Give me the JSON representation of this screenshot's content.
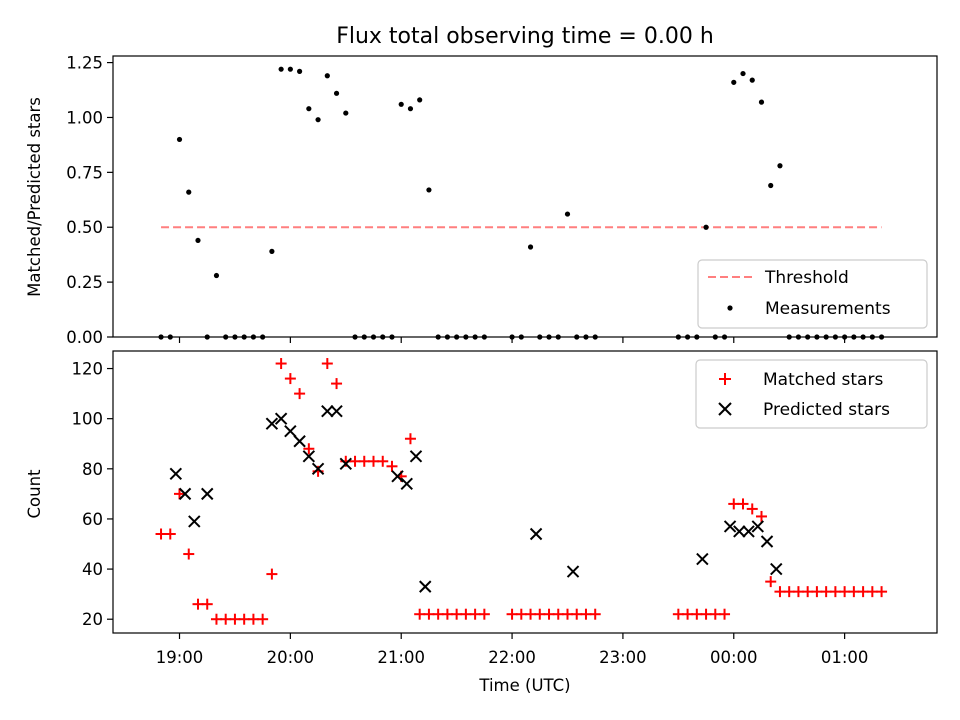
{
  "figure": {
    "title": "Flux total observing time = 0.00 h",
    "xlabel": "Time (UTC)"
  },
  "colors": {
    "threshold": "#ff7f7f",
    "measurements": "#000000",
    "matched": "#ff0000",
    "predicted": "#000000"
  },
  "chart_data": [
    {
      "type": "scatter",
      "panel": "top",
      "ylabel": "Matched/Predicted stars",
      "ylim": [
        0,
        1.28
      ],
      "xlim": [
        "18:24",
        "01:50"
      ],
      "x_ticks": [
        "19:00",
        "20:00",
        "21:00",
        "22:00",
        "23:00",
        "00:00",
        "01:00"
      ],
      "y_ticks": [
        "0.00",
        "0.25",
        "0.50",
        "0.75",
        "1.00",
        "1.25"
      ],
      "legend": {
        "position": "lower-right",
        "entries": [
          "Threshold",
          "Measurements"
        ]
      },
      "threshold": {
        "name": "Threshold",
        "value": 0.5,
        "x_range": [
          "18:50",
          "01:20"
        ]
      },
      "series": [
        {
          "name": "Measurements",
          "marker": "dot",
          "x": [
            "18:50",
            "18:55",
            "19:00",
            "19:05",
            "19:10",
            "19:15",
            "19:20",
            "19:25",
            "19:30",
            "19:35",
            "19:40",
            "19:45",
            "19:50",
            "19:55",
            "20:00",
            "20:05",
            "20:10",
            "20:15",
            "20:20",
            "20:25",
            "20:30",
            "20:35",
            "20:40",
            "20:45",
            "20:50",
            "20:55",
            "21:00",
            "21:05",
            "21:10",
            "21:15",
            "21:20",
            "21:25",
            "21:30",
            "21:35",
            "21:40",
            "21:45",
            "22:00",
            "22:05",
            "22:10",
            "22:15",
            "22:20",
            "22:25",
            "22:30",
            "22:35",
            "22:40",
            "22:45",
            "23:30",
            "23:35",
            "23:40",
            "23:45",
            "23:50",
            "23:55",
            "00:00",
            "00:05",
            "00:10",
            "00:15",
            "00:20",
            "00:25",
            "00:30",
            "00:35",
            "00:40",
            "00:45",
            "00:50",
            "00:55",
            "01:00",
            "01:05",
            "01:10",
            "01:15",
            "01:20"
          ],
          "y": [
            0,
            0,
            0.9,
            0.66,
            0.44,
            0,
            0.28,
            0,
            0,
            0,
            0,
            0,
            0.39,
            1.22,
            1.22,
            1.21,
            1.04,
            0.99,
            1.19,
            1.11,
            1.02,
            0,
            0,
            0,
            0,
            0,
            1.06,
            1.04,
            1.08,
            0.67,
            0,
            0,
            0,
            0,
            0,
            0,
            0,
            0,
            0.41,
            0,
            0,
            0,
            0.56,
            0,
            0,
            0,
            0,
            0,
            0,
            0.5,
            0,
            0,
            1.16,
            1.2,
            1.17,
            1.07,
            0.69,
            0.78,
            0,
            0,
            0,
            0,
            0,
            0,
            0,
            0,
            0,
            0,
            0
          ]
        }
      ]
    },
    {
      "type": "scatter",
      "panel": "bottom",
      "ylabel": "Count",
      "ylim": [
        14.5,
        127
      ],
      "xlim": [
        "18:24",
        "01:50"
      ],
      "x_ticks": [
        "19:00",
        "20:00",
        "21:00",
        "22:00",
        "23:00",
        "00:00",
        "01:00"
      ],
      "y_ticks": [
        "20",
        "40",
        "60",
        "80",
        "100",
        "120"
      ],
      "legend": {
        "position": "upper-right",
        "entries": [
          "Matched stars",
          "Predicted stars"
        ]
      },
      "series": [
        {
          "name": "Matched stars",
          "marker": "plus",
          "x": [
            "18:50",
            "18:55",
            "19:00",
            "19:05",
            "19:10",
            "19:15",
            "19:20",
            "19:25",
            "19:30",
            "19:35",
            "19:40",
            "19:45",
            "19:50",
            "19:55",
            "20:00",
            "20:05",
            "20:10",
            "20:15",
            "20:20",
            "20:25",
            "20:30",
            "20:35",
            "20:40",
            "20:45",
            "20:50",
            "20:55",
            "21:00",
            "21:05",
            "21:10",
            "21:15",
            "21:20",
            "21:25",
            "21:30",
            "21:35",
            "21:40",
            "21:45",
            "22:00",
            "22:05",
            "22:10",
            "22:15",
            "22:20",
            "22:25",
            "22:30",
            "22:35",
            "22:40",
            "22:45",
            "23:30",
            "23:35",
            "23:40",
            "23:45",
            "23:50",
            "23:55",
            "00:00",
            "00:05",
            "00:10",
            "00:15",
            "00:20",
            "00:25",
            "00:30",
            "00:35",
            "00:40",
            "00:45",
            "00:50",
            "00:55",
            "01:00",
            "01:05",
            "01:10",
            "01:15",
            "01:20"
          ],
          "y": [
            54,
            54,
            70,
            46,
            26,
            26,
            20,
            20,
            20,
            20,
            20,
            20,
            38,
            122,
            116,
            110,
            88,
            79,
            122,
            114,
            83,
            83,
            83,
            83,
            83,
            81,
            77,
            92,
            22,
            22,
            22,
            22,
            22,
            22,
            22,
            22,
            22,
            22,
            22,
            22,
            22,
            22,
            22,
            22,
            22,
            22,
            22,
            22,
            22,
            22,
            22,
            22,
            66,
            66,
            64,
            61,
            35,
            31,
            31,
            31,
            31,
            31,
            31,
            31,
            31,
            31,
            31,
            31,
            31
          ]
        },
        {
          "name": "Predicted stars",
          "marker": "x",
          "x": [
            "18:58",
            "19:03",
            "19:08",
            "19:15",
            "19:50",
            "19:55",
            "20:00",
            "20:05",
            "20:10",
            "20:15",
            "20:20",
            "20:25",
            "20:30",
            "20:58",
            "21:03",
            "21:08",
            "21:13",
            "22:13",
            "22:33",
            "23:43",
            "23:58",
            "00:03",
            "00:08",
            "00:13",
            "00:18",
            "00:23"
          ],
          "y": [
            78,
            70,
            59,
            70,
            98,
            100,
            95,
            91,
            85,
            80,
            103,
            103,
            82,
            77,
            74,
            85,
            33,
            54,
            39,
            44,
            57,
            55,
            55,
            57,
            51,
            40
          ]
        }
      ]
    }
  ]
}
